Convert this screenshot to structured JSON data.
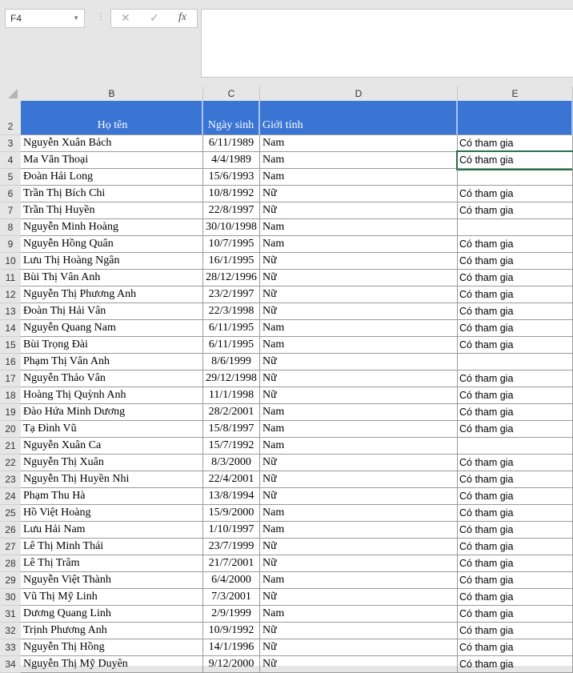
{
  "name_box": "F4",
  "formula_bar": {
    "cancel_icon": "✕",
    "enter_icon": "✓",
    "fx_label": "fx",
    "content": ""
  },
  "columns": [
    "B",
    "C",
    "D",
    "E"
  ],
  "header": {
    "row": "2",
    "name": "Họ tên",
    "dob": "Ngày sinh",
    "gender": "Giới tính",
    "e": ""
  },
  "rows": [
    [
      "3",
      "Nguyễn Xuân Bách",
      "6/11/1989",
      "Nam",
      "Có tham gia"
    ],
    [
      "4",
      "Ma Văn Thoại",
      "4/4/1989",
      "Nam",
      "Có tham gia"
    ],
    [
      "5",
      "Đoàn Hải Long",
      "15/6/1993",
      "Nam",
      ""
    ],
    [
      "6",
      "Trần Thị Bích Chi",
      "10/8/1992",
      "Nữ",
      "Có tham gia"
    ],
    [
      "7",
      "Trần Thị Huyền",
      "22/8/1997",
      "Nữ",
      "Có tham gia"
    ],
    [
      "8",
      "Nguyễn Minh Hoàng",
      "30/10/1998",
      "Nam",
      ""
    ],
    [
      "9",
      "Nguyễn Hồng Quân",
      "10/7/1995",
      "Nam",
      "Có tham gia"
    ],
    [
      "10",
      "Lưu Thị Hoàng Ngân",
      "16/1/1995",
      "Nữ",
      "Có tham gia"
    ],
    [
      "11",
      "Bùi Thị Vân Anh",
      "28/12/1996",
      "Nữ",
      "Có tham gia"
    ],
    [
      "12",
      "Nguyễn Thị Phương Anh",
      "23/2/1997",
      "Nữ",
      "Có tham gia"
    ],
    [
      "13",
      "Đoàn Thị Hải Vân",
      "22/3/1998",
      "Nữ",
      "Có tham gia"
    ],
    [
      "14",
      "Nguyễn Quang Nam",
      "6/11/1995",
      "Nam",
      "Có tham gia"
    ],
    [
      "15",
      "Bùi Trọng Đài",
      "6/11/1995",
      "Nam",
      "Có tham gia"
    ],
    [
      "16",
      "Phạm Thị Vân Anh",
      "8/6/1999",
      "Nữ",
      ""
    ],
    [
      "17",
      "Nguyễn Thảo Vân",
      "29/12/1998",
      "Nữ",
      "Có tham gia"
    ],
    [
      "18",
      "Hoàng Thị Quỳnh Anh",
      "11/1/1998",
      "Nữ",
      "Có tham gia"
    ],
    [
      "19",
      "Đào Hứa Minh Dương",
      "28/2/2001",
      "Nam",
      "Có tham gia"
    ],
    [
      "20",
      "Tạ Đình Vũ",
      "15/8/1997",
      "Nam",
      "Có tham gia"
    ],
    [
      "21",
      "Nguyễn Xuân Ca",
      "15/7/1992",
      "Nam",
      ""
    ],
    [
      "22",
      "Nguyễn Thị Xuân",
      "8/3/2000",
      "Nữ",
      "Có tham gia"
    ],
    [
      "23",
      "Nguyễn Thị Huyền Nhi",
      "22/4/2001",
      "Nữ",
      "Có tham gia"
    ],
    [
      "24",
      "Phạm Thu Hà",
      "13/8/1994",
      "Nữ",
      "Có tham gia"
    ],
    [
      "25",
      "Hồ Việt Hoàng",
      "15/9/2000",
      "Nam",
      "Có tham gia"
    ],
    [
      "26",
      "Lưu Hải Nam",
      "1/10/1997",
      "Nam",
      "Có tham gia"
    ],
    [
      "27",
      "Lê Thị Minh Thái",
      "23/7/1999",
      "Nữ",
      "Có tham gia"
    ],
    [
      "28",
      "Lê Thị Trâm",
      "21/7/2001",
      "Nữ",
      "Có tham gia"
    ],
    [
      "29",
      "Nguyễn Việt Thành",
      "6/4/2000",
      "Nam",
      "Có tham gia"
    ],
    [
      "30",
      "Vũ Thị Mỹ Linh",
      "7/3/2001",
      "Nữ",
      "Có tham gia"
    ],
    [
      "31",
      "Dương Quang Linh",
      "2/9/1999",
      "Nam",
      "Có tham gia"
    ],
    [
      "32",
      "Trịnh Phương Anh",
      "10/9/1992",
      "Nữ",
      "Có tham gia"
    ],
    [
      "33",
      "Nguyễn Thị Hồng",
      "14/1/1996",
      "Nữ",
      "Có tham gia"
    ],
    [
      "34",
      "Nguyễn Thị Mỹ Duyên",
      "9/12/2000",
      "Nữ",
      "Có tham gia"
    ]
  ],
  "colors": {
    "header_fill": "#3a75d4",
    "header_text": "#ffffff"
  }
}
